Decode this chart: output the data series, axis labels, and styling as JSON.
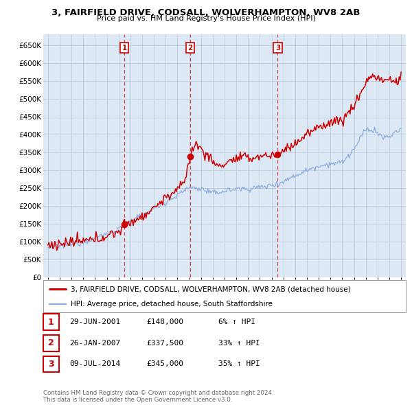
{
  "title": "3, FAIRFIELD DRIVE, CODSALL, WOLVERHAMPTON, WV8 2AB",
  "subtitle": "Price paid vs. HM Land Registry's House Price Index (HPI)",
  "property_label": "3, FAIRFIELD DRIVE, CODSALL, WOLVERHAMPTON, WV8 2AB (detached house)",
  "hpi_label": "HPI: Average price, detached house, South Staffordshire",
  "sales": [
    {
      "num": 1,
      "date": "29-JUN-2001",
      "price": 148000,
      "pct": "6%",
      "year": 2001.49
    },
    {
      "num": 2,
      "date": "26-JAN-2007",
      "price": 337500,
      "pct": "33%",
      "year": 2007.07
    },
    {
      "num": 3,
      "date": "09-JUL-2014",
      "price": 345000,
      "pct": "35%",
      "year": 2014.52
    }
  ],
  "ylim": [
    0,
    680000
  ],
  "xlim": [
    1994.6,
    2025.4
  ],
  "yticks": [
    0,
    50000,
    100000,
    150000,
    200000,
    250000,
    300000,
    350000,
    400000,
    450000,
    500000,
    550000,
    600000,
    650000
  ],
  "ytick_labels": [
    "£0",
    "£50K",
    "£100K",
    "£150K",
    "£200K",
    "£250K",
    "£300K",
    "£350K",
    "£400K",
    "£450K",
    "£500K",
    "£550K",
    "£600K",
    "£650K"
  ],
  "property_color": "#cc0000",
  "hpi_color": "#88aadd",
  "chart_bg": "#dde8f5",
  "grid_color": "#bbccdd",
  "footer": "Contains HM Land Registry data © Crown copyright and database right 2024.\nThis data is licensed under the Open Government Licence v3.0."
}
